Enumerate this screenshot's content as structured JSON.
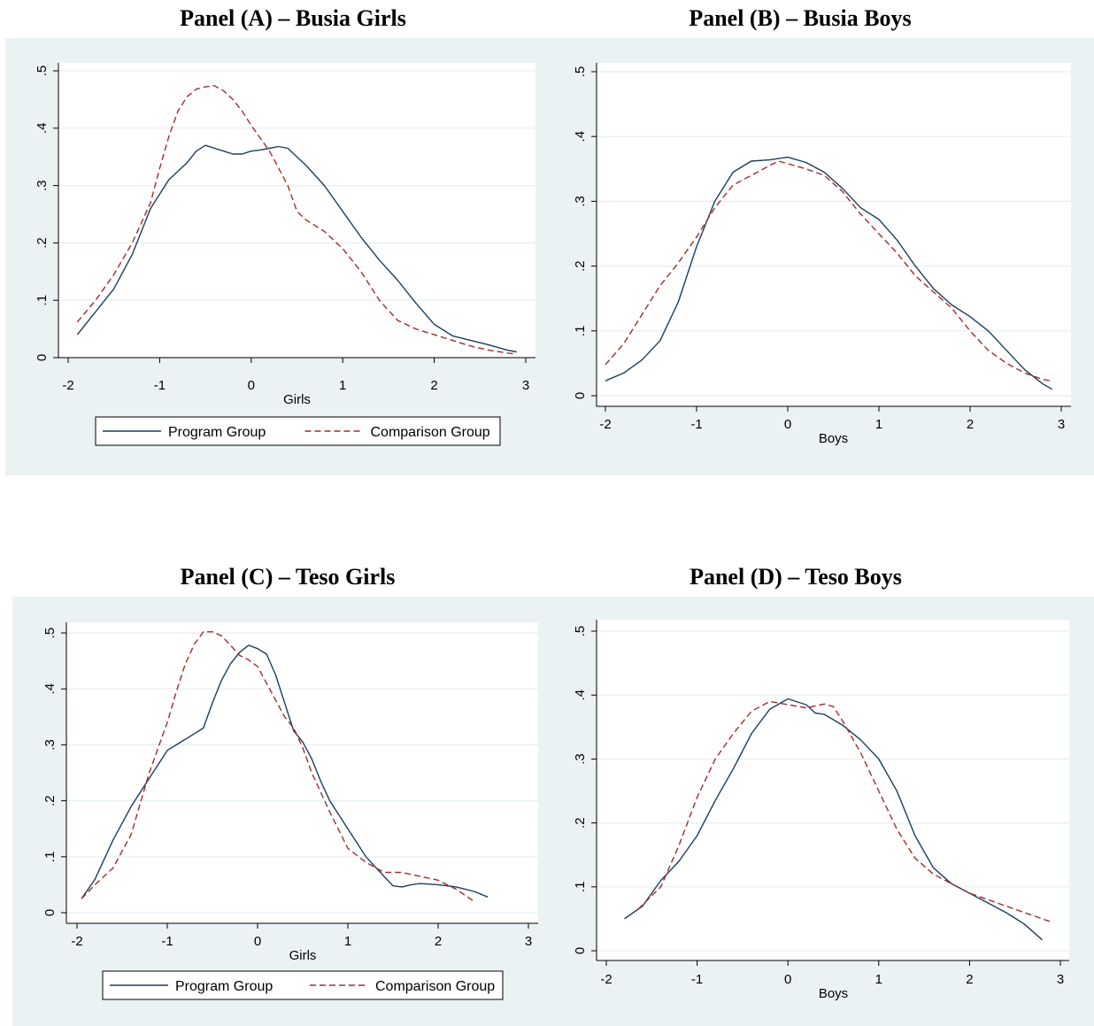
{
  "chart_data": [
    {
      "type": "line",
      "title": "Panel (A) – Busia Girls",
      "xlabel": "Girls",
      "ylabel": "",
      "xlim": [
        -2.1,
        3.1
      ],
      "ylim": [
        -0.01,
        0.51
      ],
      "xticks": [
        "-2",
        "-1",
        "0",
        "1",
        "2",
        "3"
      ],
      "yticks": [
        "0",
        ".1",
        ".2",
        ".3",
        ".4",
        ".5"
      ],
      "grid": true,
      "legend": "bottom",
      "series": [
        {
          "name": "Program Group",
          "color": "#1a3e5c",
          "dash": "solid",
          "x": [
            -1.9,
            -1.7,
            -1.5,
            -1.3,
            -1.1,
            -0.9,
            -0.7,
            -0.6,
            -0.5,
            -0.4,
            -0.3,
            -0.2,
            -0.1,
            0,
            0.1,
            0.2,
            0.3,
            0.4,
            0.5,
            0.6,
            0.8,
            1.0,
            1.2,
            1.4,
            1.6,
            1.8,
            2.0,
            2.2,
            2.4,
            2.6,
            2.8,
            2.9
          ],
          "y": [
            0.04,
            0.08,
            0.12,
            0.18,
            0.26,
            0.31,
            0.34,
            0.36,
            0.37,
            0.365,
            0.36,
            0.355,
            0.355,
            0.36,
            0.362,
            0.365,
            0.368,
            0.365,
            0.35,
            0.335,
            0.3,
            0.255,
            0.21,
            0.17,
            0.135,
            0.095,
            0.058,
            0.038,
            0.03,
            0.022,
            0.013,
            0.01
          ]
        },
        {
          "name": "Comparison Group",
          "color": "#a52a2a",
          "dash": "dashed",
          "x": [
            -1.9,
            -1.7,
            -1.5,
            -1.3,
            -1.1,
            -1.0,
            -0.9,
            -0.8,
            -0.7,
            -0.6,
            -0.5,
            -0.4,
            -0.3,
            -0.2,
            -0.1,
            0,
            0.2,
            0.4,
            0.5,
            0.6,
            0.8,
            1.0,
            1.2,
            1.4,
            1.6,
            1.8,
            2.0,
            2.2,
            2.4,
            2.6,
            2.8,
            2.9
          ],
          "y": [
            0.062,
            0.1,
            0.145,
            0.2,
            0.27,
            0.33,
            0.385,
            0.43,
            0.455,
            0.468,
            0.472,
            0.474,
            0.465,
            0.45,
            0.43,
            0.405,
            0.36,
            0.3,
            0.255,
            0.24,
            0.22,
            0.19,
            0.15,
            0.1,
            0.065,
            0.05,
            0.04,
            0.03,
            0.02,
            0.013,
            0.008,
            0.006
          ]
        }
      ]
    },
    {
      "type": "line",
      "title": "Panel (B) – Busia Boys",
      "xlabel": "Boys",
      "ylabel": "",
      "xlim": [
        -2.1,
        3.1
      ],
      "ylim": [
        -0.01,
        0.51
      ],
      "xticks": [
        "-2",
        "-1",
        "0",
        "1",
        "2",
        "3"
      ],
      "yticks": [
        "0",
        ".1",
        ".2",
        ".3",
        ".4",
        ".5"
      ],
      "grid": true,
      "legend": "none",
      "series": [
        {
          "name": "Program Group",
          "color": "#1a3e5c",
          "dash": "solid",
          "x": [
            -2.0,
            -1.8,
            -1.6,
            -1.4,
            -1.2,
            -1.0,
            -0.8,
            -0.6,
            -0.4,
            -0.2,
            0,
            0.2,
            0.4,
            0.6,
            0.8,
            1.0,
            1.2,
            1.4,
            1.6,
            1.8,
            2.0,
            2.2,
            2.4,
            2.6,
            2.8,
            2.9
          ],
          "y": [
            0.023,
            0.035,
            0.055,
            0.085,
            0.145,
            0.23,
            0.3,
            0.345,
            0.362,
            0.364,
            0.368,
            0.36,
            0.345,
            0.32,
            0.29,
            0.272,
            0.24,
            0.2,
            0.165,
            0.14,
            0.122,
            0.1,
            0.07,
            0.04,
            0.018,
            0.01
          ]
        },
        {
          "name": "Comparison Group",
          "color": "#a52a2a",
          "dash": "dashed",
          "x": [
            -2.0,
            -1.8,
            -1.6,
            -1.4,
            -1.2,
            -1.0,
            -0.8,
            -0.6,
            -0.4,
            -0.2,
            -0.1,
            0,
            0.2,
            0.4,
            0.6,
            0.8,
            1.0,
            1.2,
            1.4,
            1.6,
            1.8,
            2.0,
            2.2,
            2.4,
            2.6,
            2.8,
            2.9
          ],
          "y": [
            0.048,
            0.08,
            0.125,
            0.17,
            0.205,
            0.245,
            0.29,
            0.325,
            0.34,
            0.355,
            0.362,
            0.358,
            0.35,
            0.34,
            0.315,
            0.28,
            0.25,
            0.22,
            0.185,
            0.16,
            0.135,
            0.1,
            0.07,
            0.05,
            0.035,
            0.025,
            0.023
          ]
        }
      ]
    },
    {
      "type": "line",
      "title": "Panel (C) – Teso Girls",
      "xlabel": "Girls",
      "ylabel": "",
      "xlim": [
        -2.1,
        3.1
      ],
      "ylim": [
        -0.01,
        0.51
      ],
      "xticks": [
        "-2",
        "-1",
        "0",
        "1",
        "2",
        "3"
      ],
      "yticks": [
        "0",
        ".1",
        ".2",
        ".3",
        ".4",
        ".5"
      ],
      "grid": true,
      "legend": "bottom",
      "series": [
        {
          "name": "Program Group",
          "color": "#1a3e5c",
          "dash": "solid",
          "x": [
            -1.95,
            -1.8,
            -1.6,
            -1.4,
            -1.2,
            -1.0,
            -0.9,
            -0.8,
            -0.7,
            -0.6,
            -0.5,
            -0.4,
            -0.3,
            -0.2,
            -0.1,
            0,
            0.1,
            0.2,
            0.3,
            0.4,
            0.5,
            0.6,
            0.7,
            0.8,
            1.0,
            1.2,
            1.4,
            1.5,
            1.6,
            1.7,
            1.8,
            2.0,
            2.2,
            2.4,
            2.55
          ],
          "y": [
            0.025,
            0.06,
            0.13,
            0.19,
            0.24,
            0.29,
            0.3,
            0.31,
            0.32,
            0.33,
            0.375,
            0.415,
            0.445,
            0.465,
            0.478,
            0.472,
            0.462,
            0.425,
            0.375,
            0.325,
            0.305,
            0.275,
            0.235,
            0.2,
            0.15,
            0.1,
            0.065,
            0.048,
            0.046,
            0.05,
            0.052,
            0.05,
            0.046,
            0.038,
            0.028
          ]
        },
        {
          "name": "Comparison Group",
          "color": "#a52a2a",
          "dash": "dashed",
          "x": [
            -1.95,
            -1.8,
            -1.6,
            -1.4,
            -1.2,
            -1.0,
            -0.9,
            -0.8,
            -0.7,
            -0.6,
            -0.5,
            -0.4,
            -0.3,
            -0.2,
            -0.1,
            0,
            0.1,
            0.2,
            0.3,
            0.4,
            0.5,
            0.6,
            0.8,
            1.0,
            1.2,
            1.4,
            1.6,
            1.8,
            2.0,
            2.2,
            2.4
          ],
          "y": [
            0.025,
            0.05,
            0.08,
            0.14,
            0.25,
            0.34,
            0.395,
            0.445,
            0.48,
            0.502,
            0.502,
            0.495,
            0.478,
            0.46,
            0.452,
            0.44,
            0.41,
            0.38,
            0.35,
            0.33,
            0.295,
            0.25,
            0.18,
            0.115,
            0.09,
            0.072,
            0.072,
            0.065,
            0.058,
            0.042,
            0.02
          ]
        }
      ]
    },
    {
      "type": "line",
      "title": "Panel (D) – Teso Boys",
      "xlabel": "Boys",
      "ylabel": "",
      "xlim": [
        -2.1,
        3.1
      ],
      "ylim": [
        -0.01,
        0.51
      ],
      "xticks": [
        "-2",
        "-1",
        "0",
        "1",
        "2",
        "3"
      ],
      "yticks": [
        "0",
        ".1",
        ".2",
        ".3",
        ".4",
        ".5"
      ],
      "grid": true,
      "legend": "none",
      "series": [
        {
          "name": "Program Group",
          "color": "#1a3e5c",
          "dash": "solid",
          "x": [
            -1.8,
            -1.6,
            -1.4,
            -1.2,
            -1.0,
            -0.8,
            -0.6,
            -0.4,
            -0.2,
            0,
            0.2,
            0.3,
            0.4,
            0.6,
            0.8,
            1.0,
            1.2,
            1.4,
            1.6,
            1.8,
            2.0,
            2.2,
            2.4,
            2.6,
            2.8
          ],
          "y": [
            0.05,
            0.07,
            0.11,
            0.14,
            0.18,
            0.235,
            0.285,
            0.34,
            0.378,
            0.394,
            0.385,
            0.372,
            0.37,
            0.353,
            0.33,
            0.3,
            0.25,
            0.18,
            0.13,
            0.105,
            0.09,
            0.075,
            0.06,
            0.042,
            0.017
          ]
        },
        {
          "name": "Comparison Group",
          "color": "#a52a2a",
          "dash": "dashed",
          "x": [
            -1.65,
            -1.4,
            -1.2,
            -1.0,
            -0.8,
            -0.6,
            -0.4,
            -0.2,
            0,
            0.2,
            0.4,
            0.5,
            0.6,
            0.8,
            1.0,
            1.2,
            1.4,
            1.6,
            1.8,
            2.0,
            2.2,
            2.4,
            2.6,
            2.8,
            2.9
          ],
          "y": [
            0.065,
            0.1,
            0.165,
            0.24,
            0.3,
            0.34,
            0.375,
            0.39,
            0.385,
            0.38,
            0.386,
            0.382,
            0.36,
            0.31,
            0.25,
            0.19,
            0.145,
            0.12,
            0.105,
            0.09,
            0.08,
            0.07,
            0.06,
            0.05,
            0.045
          ]
        }
      ]
    }
  ]
}
